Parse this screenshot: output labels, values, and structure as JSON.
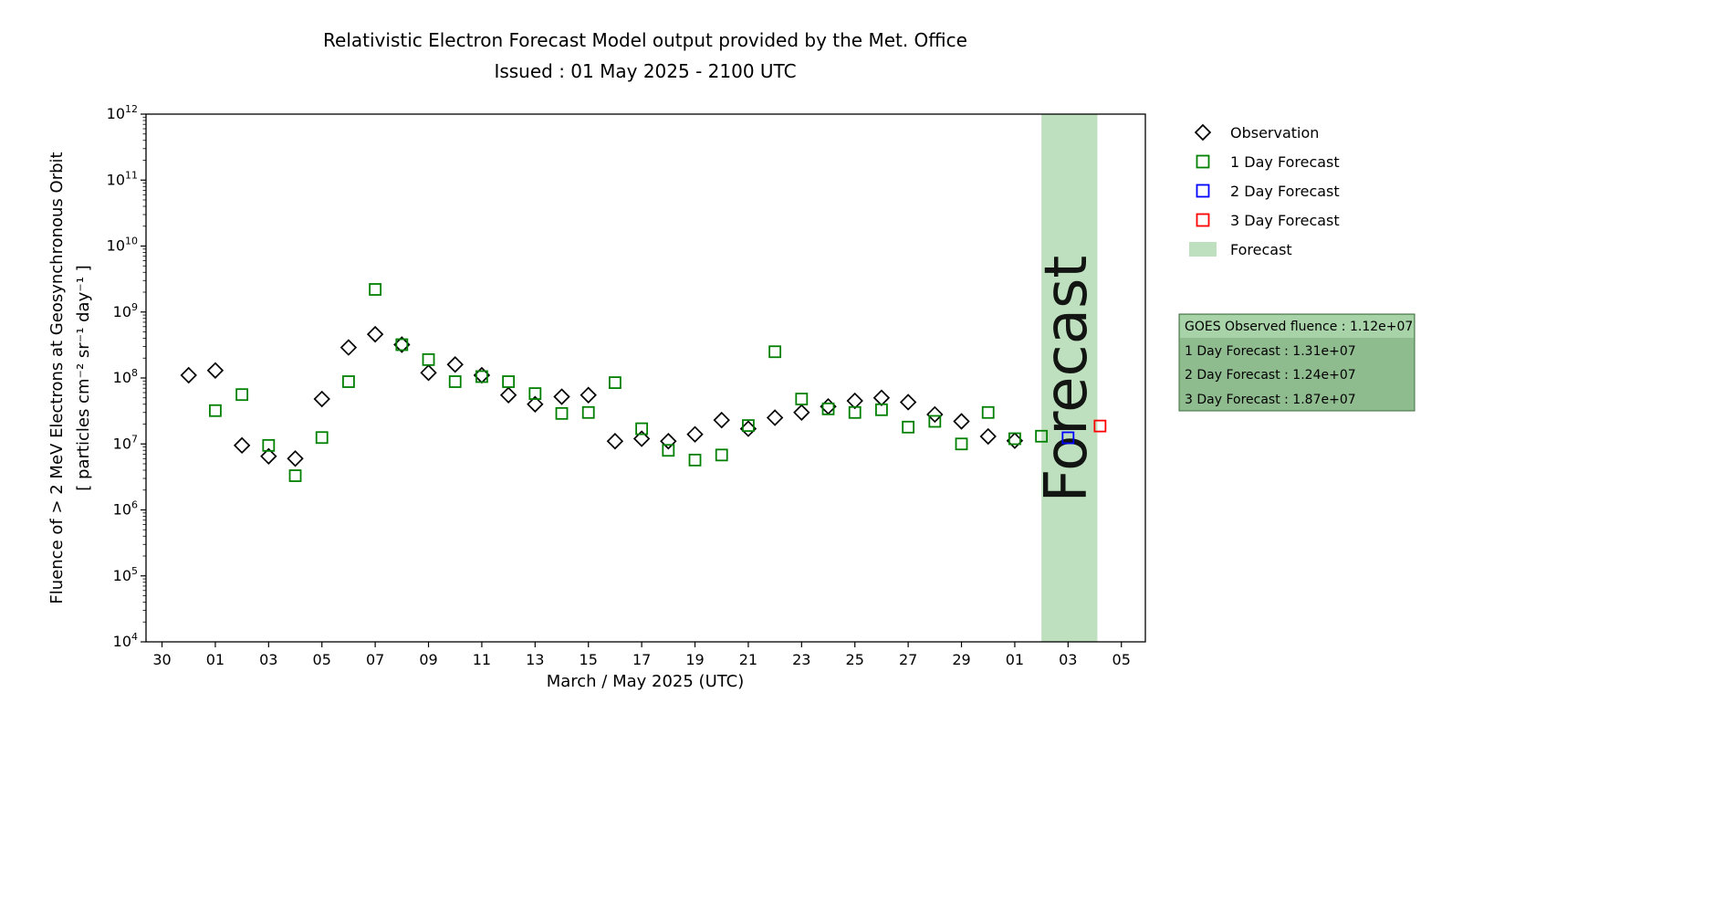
{
  "title": "Relativistic Electron Forecast Model output provided by the Met. Office",
  "subtitle": "Issued : 01 May 2025 - 2100 UTC",
  "colors": {
    "observation": "#000000",
    "forecast1": "#008000",
    "forecast2": "#0000ff",
    "forecast3": "#ff0000",
    "band": "#bfe0bf",
    "band_label": "#7d8f7d",
    "infobox_bg": "#8fbc8f",
    "infobox_header": "#a8d2a8",
    "infobox_border": "#3c6e3c"
  },
  "axes": {
    "xlabel": "March / May 2025 (UTC)",
    "ylabel_line1": "Fluence of > 2 MeV Electrons at Geosynchronous Orbit",
    "ylabel_line2": "[ particles cm⁻² sr⁻¹ day⁻¹ ]"
  },
  "legend": [
    {
      "label": "Observation",
      "marker": "diamond",
      "color": "#000000"
    },
    {
      "label": "1 Day Forecast",
      "marker": "square",
      "color": "#008000"
    },
    {
      "label": "2 Day Forecast",
      "marker": "square",
      "color": "#0000ff"
    },
    {
      "label": "3 Day Forecast",
      "marker": "square",
      "color": "#ff0000"
    },
    {
      "label": "Forecast",
      "marker": "patch",
      "color": "#bfe0bf"
    }
  ],
  "infobox": {
    "lines": [
      "GOES Observed fluence : 1.12e+07",
      "1 Day Forecast : 1.31e+07",
      "2 Day Forecast : 1.24e+07",
      "3 Day Forecast : 1.87e+07"
    ]
  },
  "chart_data": {
    "type": "scatter",
    "title": "Relativistic Electron Forecast Model output provided by the Met. Office",
    "subtitle": "Issued : 01 May 2025 - 2100 UTC",
    "x_axis": {
      "label": "March / May 2025 (UTC)",
      "day0_date": "30 March 2025",
      "tick_interval_days": 2,
      "tick_labels": [
        "30",
        "01",
        "03",
        "05",
        "07",
        "09",
        "11",
        "13",
        "15",
        "17",
        "19",
        "21",
        "23",
        "25",
        "27",
        "29",
        "01",
        "03",
        "05"
      ]
    },
    "y_axis": {
      "label": "Fluence of > 2 MeV Electrons at Geosynchronous Orbit [ particles cm⁻² sr⁻¹ day⁻¹ ]",
      "scale": "log",
      "min": 10000.0,
      "max": 1000000000000.0,
      "tick_exponents": [
        4,
        5,
        6,
        7,
        8,
        9,
        10,
        11,
        12
      ]
    },
    "xlim_days": [
      -0.6,
      36.9
    ],
    "band_label": "Forecast",
    "forecast_band": {
      "start_day": 33,
      "end_day": 35.1
    },
    "series": [
      {
        "name": "Observation",
        "marker": "diamond",
        "color": "#000000",
        "points": [
          [
            1,
            110000000.0
          ],
          [
            2,
            130000000.0
          ],
          [
            3,
            9500000.0
          ],
          [
            4,
            6500000.0
          ],
          [
            5,
            6000000.0
          ],
          [
            6,
            48000000.0
          ],
          [
            7,
            290000000.0
          ],
          [
            8,
            460000000.0
          ],
          [
            9,
            320000000.0
          ],
          [
            10,
            120000000.0
          ],
          [
            11,
            160000000.0
          ],
          [
            12,
            110000000.0
          ],
          [
            13,
            55000000.0
          ],
          [
            14,
            40000000.0
          ],
          [
            15,
            52000000.0
          ],
          [
            16,
            55000000.0
          ],
          [
            17,
            11000000.0
          ],
          [
            18,
            12000000.0
          ],
          [
            19,
            11000000.0
          ],
          [
            20,
            14000000.0
          ],
          [
            21,
            23000000.0
          ],
          [
            22,
            17000000.0
          ],
          [
            23,
            25000000.0
          ],
          [
            24,
            30000000.0
          ],
          [
            25,
            37000000.0
          ],
          [
            26,
            45000000.0
          ],
          [
            27,
            50000000.0
          ],
          [
            28,
            43000000.0
          ],
          [
            29,
            28000000.0
          ],
          [
            30,
            22000000.0
          ],
          [
            31,
            13000000.0
          ],
          [
            32,
            11200000.0
          ]
        ]
      },
      {
        "name": "1 Day Forecast",
        "marker": "square",
        "color": "#008000",
        "points": [
          [
            2,
            32000000.0
          ],
          [
            3,
            56000000.0
          ],
          [
            4,
            9500000.0
          ],
          [
            5,
            3300000.0
          ],
          [
            6,
            12500000.0
          ],
          [
            7,
            88000000.0
          ],
          [
            8,
            2200000000.0
          ],
          [
            9,
            320000000.0
          ],
          [
            10,
            190000000.0
          ],
          [
            11,
            88000000.0
          ],
          [
            12,
            105000000.0
          ],
          [
            13,
            88000000.0
          ],
          [
            14,
            58000000.0
          ],
          [
            15,
            29000000.0
          ],
          [
            16,
            30000000.0
          ],
          [
            17,
            85000000.0
          ],
          [
            18,
            17000000.0
          ],
          [
            19,
            8000000.0
          ],
          [
            20,
            5700000.0
          ],
          [
            21,
            6800000.0
          ],
          [
            22,
            19000000.0
          ],
          [
            23,
            250000000.0
          ],
          [
            24,
            48000000.0
          ],
          [
            25,
            34000000.0
          ],
          [
            26,
            30000000.0
          ],
          [
            27,
            33000000.0
          ],
          [
            28,
            18000000.0
          ],
          [
            29,
            22000000.0
          ],
          [
            30,
            10000000.0
          ],
          [
            31,
            30000000.0
          ],
          [
            32,
            12000000.0
          ],
          [
            33,
            13100000.0
          ]
        ]
      },
      {
        "name": "2 Day Forecast",
        "marker": "square",
        "color": "#0000ff",
        "points": [
          [
            34,
            12400000.0
          ]
        ]
      },
      {
        "name": "3 Day Forecast",
        "marker": "square",
        "color": "#ff0000",
        "points": [
          [
            35.2,
            18700000.0
          ]
        ]
      }
    ]
  }
}
